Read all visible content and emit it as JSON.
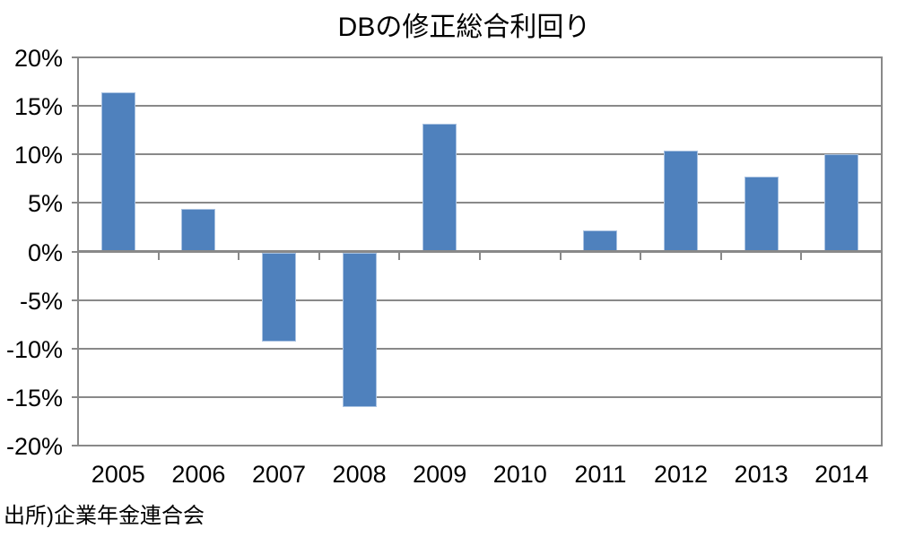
{
  "chart_data": {
    "type": "bar",
    "title": "DBの修正総合利回り",
    "categories": [
      "2005",
      "2006",
      "2007",
      "2008",
      "2009",
      "2010",
      "2011",
      "2012",
      "2013",
      "2014"
    ],
    "values": [
      16.4,
      4.4,
      -9.1,
      -15.9,
      13.2,
      0.0,
      2.2,
      10.4,
      7.7,
      10.0
    ],
    "unit": "%",
    "ylim": [
      -20,
      20
    ],
    "ytick_step": 5,
    "ytick_labels": [
      "20%",
      "15%",
      "10%",
      "5%",
      "0%",
      "-5%",
      "-10%",
      "-15%",
      "-20%"
    ],
    "grid": true,
    "legend": "none",
    "bar_color": "#4F81BD",
    "bar_border_color": "#A9C2E1",
    "grid_color": "#898989",
    "text_color": "#000000",
    "source": "出所)企業年金連合会"
  }
}
